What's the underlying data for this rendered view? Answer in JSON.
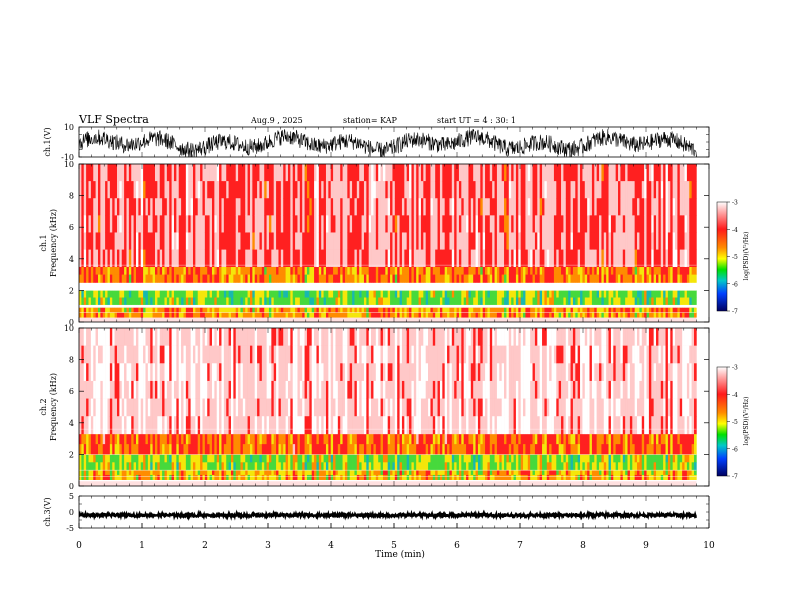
{
  "header": {
    "title": "VLF Spectra",
    "date": "Aug.9 , 2025",
    "station": "station= KAP",
    "start_ut": "start UT = 4 : 30: 1"
  },
  "colors": {
    "background": "#ffffff",
    "trace": "#000000",
    "spectrogram_base": "#e8231c",
    "spectrogram_high": "#ffffff",
    "spectrogram_mid": "#f5e30a",
    "spectrogram_low": "#46d93c"
  },
  "chart_data": [
    {
      "id": "ch1-waveform",
      "type": "line",
      "ylabel": "ch.1(V)",
      "ylim": [
        -10,
        10
      ],
      "yticks": [
        "10",
        "-10"
      ],
      "description_values": {
        "time_range_min": [
          0,
          9.8
        ],
        "mean_level_v": -1,
        "amplitude_v": 8
      }
    },
    {
      "id": "ch1-spectrogram",
      "type": "heatmap",
      "ylabel_line1": "ch.1",
      "ylabel_line2": "Frequency (kHz)",
      "ylim": [
        0,
        10
      ],
      "yticks": [
        "0",
        "2",
        "4",
        "6",
        "8",
        "10"
      ],
      "bands_khz": [
        {
          "from": 0.3,
          "to": 0.9,
          "level": -4.5
        },
        {
          "from": 1.1,
          "to": 2.0,
          "level": -5.0
        },
        {
          "from": 2.5,
          "to": 3.5,
          "level": -4.4
        },
        {
          "from": 3.5,
          "to": 10,
          "level": -3.8
        }
      ],
      "colorbar": {
        "label": "log(PSD)(V²/Hz)",
        "ticks": [
          "-3",
          "-4",
          "-5",
          "-6",
          "-7"
        ],
        "range": [
          -7,
          -3
        ]
      }
    },
    {
      "id": "ch2-spectrogram",
      "type": "heatmap",
      "ylabel_line1": "ch.2",
      "ylabel_line2": "Frequency (kHz)",
      "ylim": [
        0,
        10
      ],
      "yticks": [
        "0",
        "2",
        "4",
        "6",
        "8",
        "10"
      ],
      "bands_khz": [
        {
          "from": 0.4,
          "to": 1.0,
          "level": -4.6
        },
        {
          "from": 1.0,
          "to": 2.0,
          "level": -4.9
        },
        {
          "from": 2.0,
          "to": 3.3,
          "level": -4.3
        },
        {
          "from": 3.3,
          "to": 10,
          "level": -3.5
        }
      ],
      "colorbar": {
        "label": "log(PSD)(V²/Hz)",
        "ticks": [
          "-3",
          "-4",
          "-5",
          "-6",
          "-7"
        ],
        "range": [
          -7,
          -3
        ]
      }
    },
    {
      "id": "ch3-waveform",
      "type": "line",
      "ylabel": "ch.3(V)",
      "ylim": [
        -5,
        5
      ],
      "yticks": [
        "5",
        "0",
        "-5"
      ],
      "description_values": {
        "time_range_min": [
          0,
          9.8
        ],
        "mean_level_v": -1,
        "amplitude_v": 0.5
      }
    }
  ],
  "x_axis": {
    "label": "Time (min)",
    "range": [
      0,
      10
    ],
    "ticks": [
      "0",
      "1",
      "2",
      "3",
      "4",
      "5",
      "6",
      "7",
      "8",
      "9",
      "10"
    ]
  }
}
